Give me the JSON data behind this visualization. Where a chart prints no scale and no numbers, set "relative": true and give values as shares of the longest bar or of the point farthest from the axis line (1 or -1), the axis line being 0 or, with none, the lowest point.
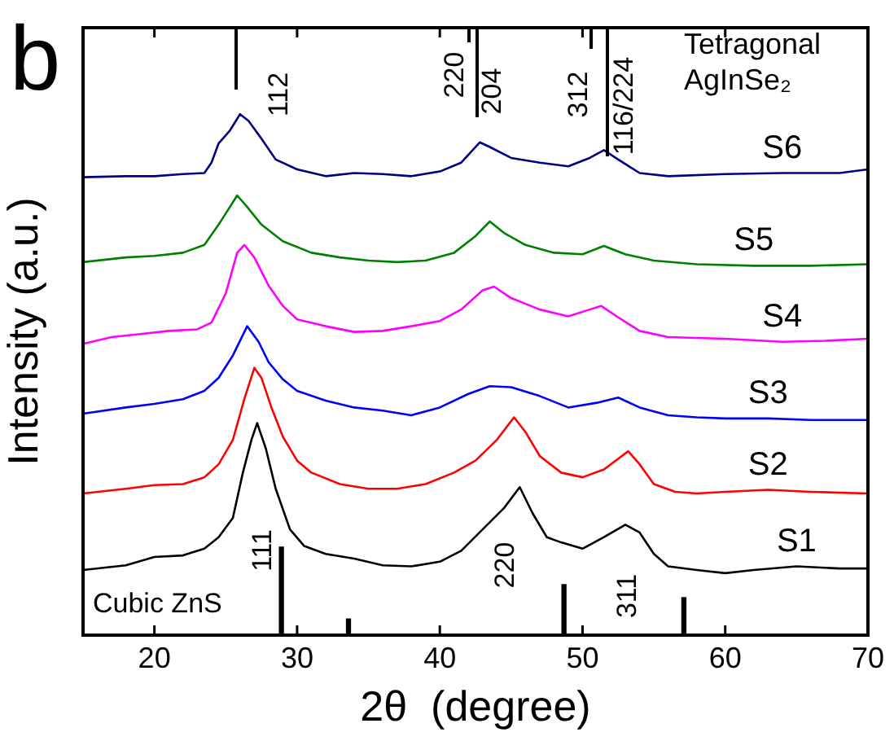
{
  "chart_data": {
    "type": "line",
    "relative": true,
    "xlabel": "2θ  (degree)",
    "ylabel": "Intensity (a.u.)",
    "xlim": [
      15,
      70
    ],
    "xticks": [
      20,
      30,
      40,
      50,
      60,
      70
    ],
    "grid": false,
    "legend": false,
    "series": [
      {
        "name": "S1",
        "color": "#000000",
        "x": [
          15,
          18,
          20,
          22,
          23.5,
          24.5,
          25.5,
          26.2,
          26.8,
          27.2,
          27.8,
          28.5,
          29.5,
          30.5,
          32,
          34,
          36,
          38,
          40,
          41.5,
          43,
          44.5,
          45.6,
          46.5,
          47.5,
          48.5,
          50,
          51.5,
          53,
          54,
          55,
          56,
          58,
          60,
          62,
          65,
          68,
          70
        ],
        "values": [
          0.125,
          0.134,
          0.15,
          0.153,
          0.166,
          0.188,
          0.225,
          0.312,
          0.375,
          0.407,
          0.359,
          0.281,
          0.203,
          0.171,
          0.156,
          0.147,
          0.134,
          0.132,
          0.141,
          0.162,
          0.203,
          0.244,
          0.284,
          0.234,
          0.188,
          0.178,
          0.166,
          0.188,
          0.212,
          0.197,
          0.156,
          0.132,
          0.125,
          0.119,
          0.125,
          0.132,
          0.128,
          0.128
        ]
      },
      {
        "name": "S2",
        "color": "#ff0000",
        "x": [
          15,
          18,
          20,
          22,
          23.5,
          24.5,
          25.5,
          26.3,
          27,
          27.5,
          28.2,
          29,
          30,
          31,
          33,
          35,
          37,
          39,
          41,
          42.5,
          44,
          45.2,
          46,
          47,
          48.5,
          50,
          51.5,
          53.2,
          54,
          55,
          56.5,
          58,
          60,
          63,
          66,
          70
        ],
        "values": [
          0.272,
          0.281,
          0.288,
          0.29,
          0.303,
          0.328,
          0.375,
          0.453,
          0.513,
          0.494,
          0.437,
          0.381,
          0.335,
          0.312,
          0.29,
          0.281,
          0.281,
          0.29,
          0.312,
          0.335,
          0.375,
          0.418,
          0.39,
          0.344,
          0.312,
          0.303,
          0.318,
          0.353,
          0.328,
          0.29,
          0.275,
          0.272,
          0.275,
          0.279,
          0.275,
          0.272
        ]
      },
      {
        "name": "S3",
        "color": "#0000ff",
        "x": [
          15,
          18,
          20,
          22,
          23.5,
          24.5,
          25.5,
          26.5,
          27.3,
          28,
          29,
          30,
          32,
          34,
          36,
          38,
          40,
          42,
          43.5,
          45,
          47,
          49,
          51,
          52.5,
          54,
          56,
          58,
          60,
          63,
          66,
          70
        ],
        "values": [
          0.425,
          0.437,
          0.444,
          0.453,
          0.469,
          0.494,
          0.537,
          0.593,
          0.563,
          0.524,
          0.491,
          0.469,
          0.45,
          0.437,
          0.431,
          0.422,
          0.437,
          0.463,
          0.478,
          0.476,
          0.459,
          0.437,
          0.446,
          0.456,
          0.437,
          0.422,
          0.418,
          0.416,
          0.416,
          0.413,
          0.413
        ]
      },
      {
        "name": "S4",
        "color": "#ff00ff",
        "x": [
          15,
          17,
          19,
          21,
          23,
          24,
          25,
          25.8,
          26.3,
          27,
          28,
          29,
          30,
          32,
          34,
          36,
          38,
          40,
          41.5,
          43,
          43.8,
          45,
          47,
          49,
          50.5,
          51.3,
          52.5,
          54,
          56,
          60,
          64,
          67,
          70
        ],
        "values": [
          0.559,
          0.572,
          0.578,
          0.584,
          0.587,
          0.6,
          0.656,
          0.734,
          0.749,
          0.725,
          0.671,
          0.632,
          0.606,
          0.593,
          0.582,
          0.584,
          0.593,
          0.603,
          0.625,
          0.662,
          0.669,
          0.647,
          0.625,
          0.612,
          0.625,
          0.632,
          0.61,
          0.584,
          0.572,
          0.569,
          0.563,
          0.565,
          0.569
        ]
      },
      {
        "name": "S5",
        "color": "#008000",
        "x": [
          15,
          18,
          20,
          22,
          23.5,
          24.5,
          25.2,
          25.8,
          26.5,
          27.5,
          29,
          31,
          33,
          35,
          37,
          39,
          41,
          42.5,
          43.5,
          44.5,
          46,
          48,
          50,
          51.5,
          53,
          55,
          58,
          62,
          66,
          70
        ],
        "values": [
          0.716,
          0.725,
          0.728,
          0.734,
          0.749,
          0.788,
          0.818,
          0.844,
          0.822,
          0.788,
          0.756,
          0.734,
          0.725,
          0.719,
          0.716,
          0.719,
          0.734,
          0.766,
          0.794,
          0.772,
          0.749,
          0.734,
          0.731,
          0.747,
          0.731,
          0.719,
          0.712,
          0.709,
          0.709,
          0.712
        ]
      },
      {
        "name": "S6",
        "color": "#000080",
        "x": [
          15,
          18,
          20,
          22,
          23.5,
          24,
          24.5,
          25.3,
          26,
          26.6,
          27.5,
          28.5,
          30,
          32,
          34,
          36,
          38,
          40,
          41.5,
          42.8,
          43.5,
          45,
          47,
          49,
          50.5,
          51.5,
          52.5,
          54,
          56,
          60,
          64,
          68,
          70
        ],
        "values": [
          0.879,
          0.881,
          0.881,
          0.885,
          0.887,
          0.907,
          0.944,
          0.969,
          1,
          0.987,
          0.953,
          0.913,
          0.894,
          0.881,
          0.887,
          0.885,
          0.881,
          0.89,
          0.907,
          0.946,
          0.937,
          0.916,
          0.907,
          0.9,
          0.916,
          0.931,
          0.913,
          0.887,
          0.881,
          0.885,
          0.887,
          0.887,
          0.894
        ]
      },
      {
        "type": "bar",
        "color": "#000000",
        "x": [
          28.9,
          33.6,
          48.7,
          57.1
        ],
        "values": [
          0.169,
          0.031,
          0.097,
          0.072
        ]
      }
    ],
    "annotations": [
      "b",
      "Tetragonal AgInSe₂",
      "Cubic ZnS",
      "111",
      "220",
      "311",
      "112",
      "220",
      "204",
      "312",
      "116/224"
    ]
  }
}
